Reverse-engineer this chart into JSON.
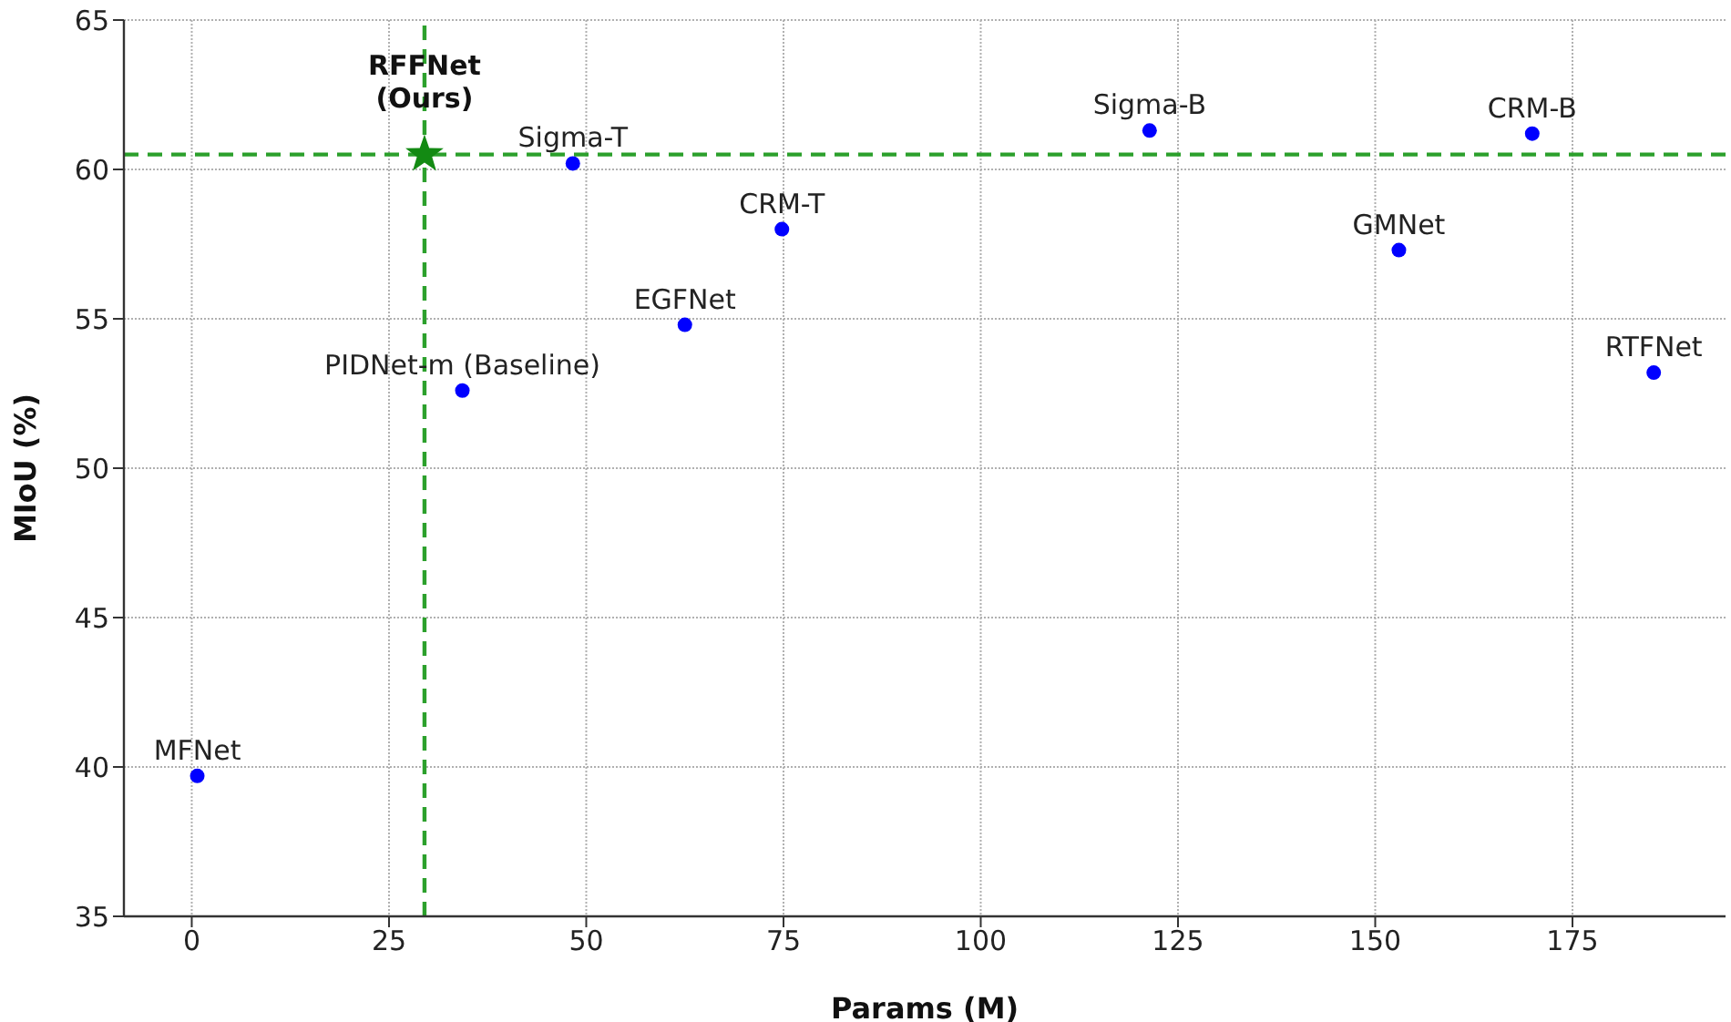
{
  "chart_data": {
    "type": "scatter",
    "xlabel": "Params (M)",
    "ylabel": "MIoU (%)",
    "xlim": [
      -8.6,
      194.4
    ],
    "xticks": [
      0,
      25,
      50,
      75,
      100,
      125,
      150,
      175
    ],
    "ylim": [
      35,
      65
    ],
    "yticks": [
      35,
      40,
      45,
      50,
      55,
      60,
      65
    ],
    "grid": true,
    "legend": false,
    "marker": "circle",
    "series": [
      {
        "color": "#0000ff",
        "x": [
          0.7,
          34.3,
          48.3,
          62.5,
          74.8,
          121.4,
          153.0,
          169.9,
          185.3
        ],
        "values": [
          39.7,
          52.6,
          60.2,
          54.8,
          58.0,
          61.3,
          57.3,
          61.2,
          53.2
        ]
      },
      {
        "name": "RFFNet (Ours)",
        "color": "#138a13",
        "marker": "star",
        "x": [
          29.5
        ],
        "values": [
          60.5
        ]
      }
    ],
    "ref_lines": [
      {
        "axis": "x",
        "value": 29.5,
        "color": "#2ca02c",
        "line_style": "dashed"
      },
      {
        "axis": "y",
        "value": 60.5,
        "color": "#2ca02c",
        "line_style": "dashed"
      }
    ],
    "annotations": [
      {
        "text": "MFNet",
        "x": 0.7,
        "y": 39.7
      },
      {
        "text": "PIDNet-m (Baseline)",
        "x": 34.3,
        "y": 52.6
      },
      {
        "text": "Sigma-T",
        "x": 48.3,
        "y": 60.2
      },
      {
        "text": "EGFNet",
        "x": 62.5,
        "y": 54.8
      },
      {
        "text": "CRM-T",
        "x": 74.8,
        "y": 58.0
      },
      {
        "text": "Sigma-B",
        "x": 121.4,
        "y": 61.3
      },
      {
        "text": "GMNet",
        "x": 153.0,
        "y": 57.3
      },
      {
        "text": "CRM-B",
        "x": 169.9,
        "y": 61.2
      },
      {
        "text": "RTFNet",
        "x": 185.3,
        "y": 53.2
      }
    ]
  }
}
